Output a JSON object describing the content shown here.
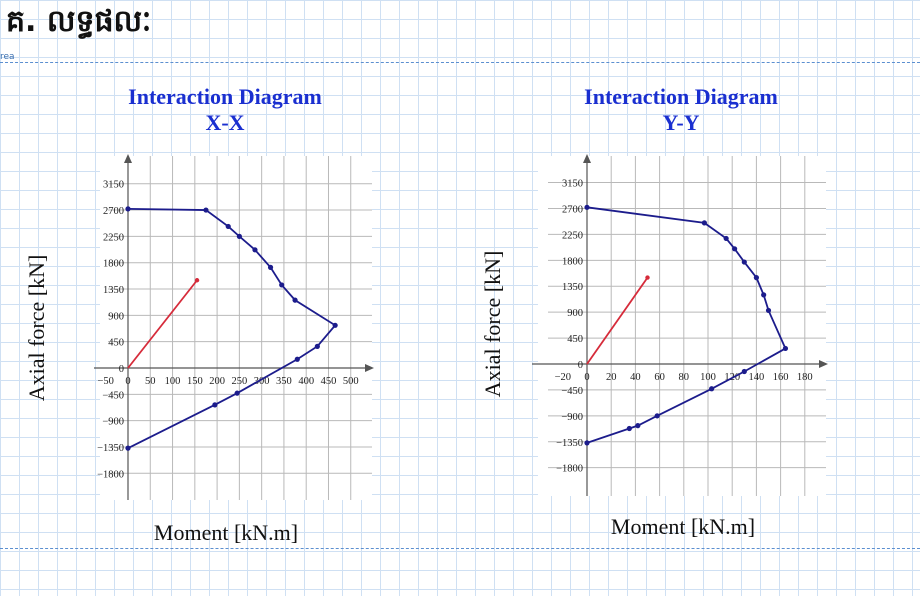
{
  "heading": "គ. លទ្ធផលៈ",
  "area_tag": "rea",
  "chart_data": [
    {
      "type": "line",
      "title": "Interaction Diagram",
      "subtitle": "X-X",
      "xlabel": "Moment [kN.m]",
      "ylabel": "Axial force [kN]",
      "xlim": [
        -50,
        500
      ],
      "ylim": [
        -1800,
        3150
      ],
      "x_ticks": [
        -50,
        0,
        50,
        100,
        150,
        200,
        250,
        300,
        350,
        400,
        450,
        500
      ],
      "x_tick_labels": [
        "−50",
        "0",
        "50",
        "100",
        "150",
        "200",
        "250",
        "300",
        "350",
        "400",
        "450",
        "500"
      ],
      "y_ticks": [
        3150,
        2700,
        2250,
        1800,
        1350,
        900,
        450,
        0,
        -450,
        -900,
        -1350,
        -1800
      ],
      "y_tick_labels": [
        "3150",
        "2700",
        "2250",
        "1800",
        "1350",
        "900",
        "450",
        "0",
        "−450",
        "−900",
        "−1350",
        "−1800"
      ],
      "grid": true,
      "series": [
        {
          "color": "#1c1c8c",
          "markers": true,
          "points": [
            [
              0,
              2720
            ],
            [
              175,
              2700
            ],
            [
              225,
              2420
            ],
            [
              250,
              2250
            ],
            [
              285,
              2020
            ],
            [
              320,
              1720
            ],
            [
              345,
              1420
            ],
            [
              375,
              1160
            ],
            [
              465,
              730
            ],
            [
              425,
              370
            ],
            [
              380,
              150
            ],
            [
              245,
              -430
            ],
            [
              195,
              -630
            ],
            [
              0,
              -1370
            ]
          ]
        },
        {
          "color": "#d62b3a",
          "markers": false,
          "points": [
            [
              0,
              0
            ],
            [
              155,
              1500
            ]
          ]
        }
      ]
    },
    {
      "type": "line",
      "title": "Interaction Diagram",
      "subtitle": "Y-Y",
      "xlabel": "Moment [kN.m]",
      "ylabel": "Axial force [kN]",
      "xlim": [
        -20,
        180
      ],
      "ylim": [
        -1800,
        3150
      ],
      "x_ticks": [
        -20,
        0,
        20,
        40,
        60,
        80,
        100,
        120,
        140,
        160,
        180
      ],
      "x_tick_labels": [
        "−20",
        "0",
        "20",
        "40",
        "60",
        "80",
        "100",
        "120",
        "140",
        "160",
        "180"
      ],
      "y_ticks": [
        3150,
        2700,
        2250,
        1800,
        1350,
        900,
        450,
        0,
        -450,
        -900,
        -1350,
        -1800
      ],
      "y_tick_labels": [
        "3150",
        "2700",
        "2250",
        "1800",
        "1350",
        "900",
        "450",
        "0",
        "−450",
        "−900",
        "−1350",
        "−1800"
      ],
      "grid": true,
      "series": [
        {
          "color": "#1c1c8c",
          "markers": true,
          "points": [
            [
              0,
              2720
            ],
            [
              97,
              2450
            ],
            [
              115,
              2180
            ],
            [
              122,
              2000
            ],
            [
              130,
              1770
            ],
            [
              140,
              1500
            ],
            [
              146,
              1200
            ],
            [
              150,
              930
            ],
            [
              164,
              270
            ],
            [
              130,
              -130
            ],
            [
              103,
              -430
            ],
            [
              58,
              -900
            ],
            [
              42,
              -1070
            ],
            [
              35,
              -1120
            ],
            [
              0,
              -1370
            ]
          ]
        },
        {
          "color": "#d62b3a",
          "markers": false,
          "points": [
            [
              0,
              0
            ],
            [
              50,
              1500
            ]
          ]
        }
      ]
    }
  ]
}
